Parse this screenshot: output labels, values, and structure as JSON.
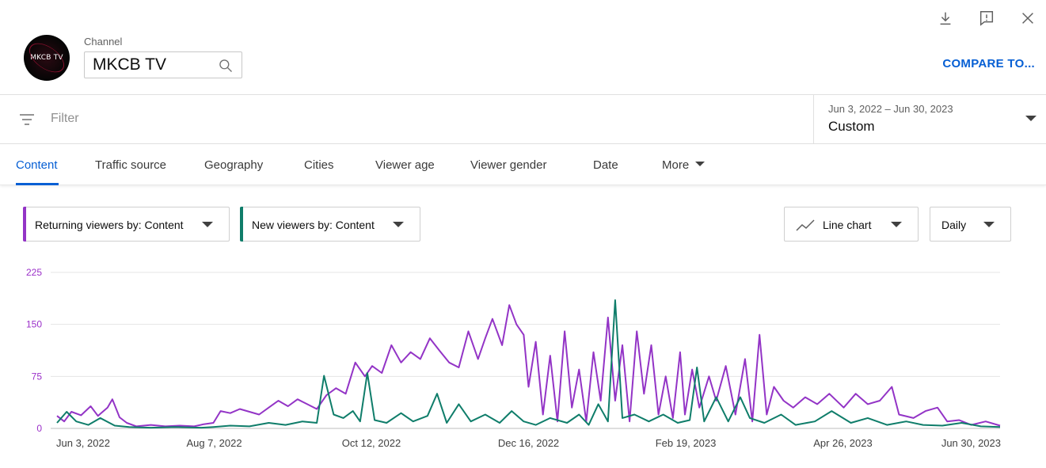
{
  "header": {
    "channel_label": "Channel",
    "channel_value": "MKCB TV",
    "avatar_text": "MKCB TV",
    "compare_label": "COMPARE TO...",
    "icons": [
      "download-icon",
      "feedback-icon",
      "close-icon"
    ]
  },
  "filter": {
    "placeholder": "Filter",
    "date_range": "Jun 3, 2022 – Jun 30, 2023",
    "date_mode": "Custom"
  },
  "tabs": [
    {
      "label": "Content",
      "active": true
    },
    {
      "label": "Traffic source"
    },
    {
      "label": "Geography"
    },
    {
      "label": "Cities"
    },
    {
      "label": "Viewer age"
    },
    {
      "label": "Viewer gender"
    },
    {
      "label": "Date"
    },
    {
      "label": "More"
    }
  ],
  "selectors": {
    "metric1": "Returning viewers by: Content",
    "metric2": "New viewers by: Content",
    "chart_type": "Line chart",
    "granularity": "Daily"
  },
  "colors": {
    "accent": "#065fd4",
    "returning": "#9334c6",
    "new": "#0f7d6a",
    "grid": "#e5e5e5"
  },
  "chart_data": {
    "type": "line",
    "x_start": "2022-06-03",
    "x_end": "2023-06-30",
    "x_ticks": [
      "Jun 3, 2022",
      "Aug 7, 2022",
      "Oct 12, 2022",
      "Dec 16, 2022",
      "Feb 19, 2023",
      "Apr 26, 2023",
      "Jun 30, 2023"
    ],
    "y_ticks": [
      "0",
      "75",
      "150",
      "225"
    ],
    "ylim": [
      0,
      225
    ],
    "series": [
      {
        "name": "Returning viewers by: Content",
        "color": "#9334c6",
        "points": [
          [
            "2022-06-03",
            18
          ],
          [
            "2022-06-06",
            10
          ],
          [
            "2022-06-09",
            24
          ],
          [
            "2022-06-13",
            19
          ],
          [
            "2022-06-17",
            32
          ],
          [
            "2022-06-20",
            18
          ],
          [
            "2022-06-24",
            30
          ],
          [
            "2022-06-26",
            42
          ],
          [
            "2022-06-29",
            16
          ],
          [
            "2022-07-02",
            8
          ],
          [
            "2022-07-06",
            3
          ],
          [
            "2022-07-12",
            5
          ],
          [
            "2022-07-18",
            3
          ],
          [
            "2022-07-24",
            4
          ],
          [
            "2022-07-30",
            3
          ],
          [
            "2022-08-03",
            6
          ],
          [
            "2022-08-07",
            8
          ],
          [
            "2022-08-10",
            25
          ],
          [
            "2022-08-14",
            22
          ],
          [
            "2022-08-18",
            28
          ],
          [
            "2022-08-22",
            24
          ],
          [
            "2022-08-26",
            20
          ],
          [
            "2022-08-30",
            30
          ],
          [
            "2022-09-03",
            40
          ],
          [
            "2022-09-07",
            32
          ],
          [
            "2022-09-11",
            42
          ],
          [
            "2022-09-15",
            35
          ],
          [
            "2022-09-19",
            28
          ],
          [
            "2022-09-23",
            48
          ],
          [
            "2022-09-27",
            58
          ],
          [
            "2022-10-01",
            50
          ],
          [
            "2022-10-05",
            95
          ],
          [
            "2022-10-09",
            75
          ],
          [
            "2022-10-12",
            90
          ],
          [
            "2022-10-16",
            80
          ],
          [
            "2022-10-20",
            120
          ],
          [
            "2022-10-24",
            95
          ],
          [
            "2022-10-28",
            110
          ],
          [
            "2022-11-01",
            100
          ],
          [
            "2022-11-05",
            130
          ],
          [
            "2022-11-09",
            112
          ],
          [
            "2022-11-13",
            95
          ],
          [
            "2022-11-17",
            88
          ],
          [
            "2022-11-21",
            140
          ],
          [
            "2022-11-25",
            100
          ],
          [
            "2022-11-28",
            130
          ],
          [
            "2022-12-01",
            158
          ],
          [
            "2022-12-05",
            120
          ],
          [
            "2022-12-08",
            178
          ],
          [
            "2022-12-11",
            150
          ],
          [
            "2022-12-14",
            135
          ],
          [
            "2022-12-16",
            60
          ],
          [
            "2022-12-19",
            125
          ],
          [
            "2022-12-22",
            20
          ],
          [
            "2022-12-25",
            105
          ],
          [
            "2022-12-28",
            10
          ],
          [
            "2022-12-31",
            140
          ],
          [
            "2023-01-03",
            30
          ],
          [
            "2023-01-06",
            85
          ],
          [
            "2023-01-09",
            10
          ],
          [
            "2023-01-12",
            110
          ],
          [
            "2023-01-15",
            40
          ],
          [
            "2023-01-18",
            160
          ],
          [
            "2023-01-21",
            40
          ],
          [
            "2023-01-24",
            120
          ],
          [
            "2023-01-27",
            10
          ],
          [
            "2023-01-30",
            140
          ],
          [
            "2023-02-02",
            50
          ],
          [
            "2023-02-05",
            120
          ],
          [
            "2023-02-08",
            20
          ],
          [
            "2023-02-11",
            75
          ],
          [
            "2023-02-14",
            15
          ],
          [
            "2023-02-17",
            110
          ],
          [
            "2023-02-19",
            20
          ],
          [
            "2023-02-22",
            85
          ],
          [
            "2023-02-25",
            30
          ],
          [
            "2023-03-01",
            75
          ],
          [
            "2023-03-04",
            40
          ],
          [
            "2023-03-08",
            90
          ],
          [
            "2023-03-12",
            20
          ],
          [
            "2023-03-16",
            100
          ],
          [
            "2023-03-19",
            10
          ],
          [
            "2023-03-22",
            135
          ],
          [
            "2023-03-25",
            20
          ],
          [
            "2023-03-28",
            60
          ],
          [
            "2023-04-01",
            40
          ],
          [
            "2023-04-05",
            30
          ],
          [
            "2023-04-10",
            45
          ],
          [
            "2023-04-15",
            35
          ],
          [
            "2023-04-20",
            50
          ],
          [
            "2023-04-26",
            30
          ],
          [
            "2023-05-01",
            50
          ],
          [
            "2023-05-06",
            35
          ],
          [
            "2023-05-11",
            40
          ],
          [
            "2023-05-16",
            60
          ],
          [
            "2023-05-19",
            20
          ],
          [
            "2023-05-25",
            15
          ],
          [
            "2023-05-30",
            25
          ],
          [
            "2023-06-04",
            30
          ],
          [
            "2023-06-08",
            10
          ],
          [
            "2023-06-13",
            12
          ],
          [
            "2023-06-18",
            5
          ],
          [
            "2023-06-24",
            10
          ],
          [
            "2023-06-30",
            4
          ]
        ]
      },
      {
        "name": "New viewers by: Content",
        "color": "#0f7d6a",
        "points": [
          [
            "2022-06-03",
            8
          ],
          [
            "2022-06-07",
            24
          ],
          [
            "2022-06-11",
            10
          ],
          [
            "2022-06-16",
            5
          ],
          [
            "2022-06-21",
            15
          ],
          [
            "2022-06-27",
            4
          ],
          [
            "2022-07-03",
            2
          ],
          [
            "2022-07-12",
            1
          ],
          [
            "2022-07-22",
            2
          ],
          [
            "2022-08-02",
            1
          ],
          [
            "2022-08-07",
            2
          ],
          [
            "2022-08-14",
            4
          ],
          [
            "2022-08-22",
            3
          ],
          [
            "2022-08-30",
            8
          ],
          [
            "2022-09-06",
            5
          ],
          [
            "2022-09-13",
            10
          ],
          [
            "2022-09-19",
            8
          ],
          [
            "2022-09-22",
            76
          ],
          [
            "2022-09-26",
            20
          ],
          [
            "2022-09-30",
            15
          ],
          [
            "2022-10-04",
            25
          ],
          [
            "2022-10-07",
            10
          ],
          [
            "2022-10-10",
            80
          ],
          [
            "2022-10-13",
            12
          ],
          [
            "2022-10-18",
            8
          ],
          [
            "2022-10-24",
            22
          ],
          [
            "2022-10-29",
            10
          ],
          [
            "2022-11-04",
            18
          ],
          [
            "2022-11-08",
            50
          ],
          [
            "2022-11-12",
            8
          ],
          [
            "2022-11-17",
            35
          ],
          [
            "2022-11-22",
            10
          ],
          [
            "2022-11-28",
            20
          ],
          [
            "2022-12-04",
            8
          ],
          [
            "2022-12-09",
            25
          ],
          [
            "2022-12-14",
            10
          ],
          [
            "2022-12-19",
            5
          ],
          [
            "2022-12-25",
            15
          ],
          [
            "2023-01-01",
            8
          ],
          [
            "2023-01-06",
            20
          ],
          [
            "2023-01-10",
            5
          ],
          [
            "2023-01-14",
            35
          ],
          [
            "2023-01-18",
            10
          ],
          [
            "2023-01-21",
            185
          ],
          [
            "2023-01-24",
            15
          ],
          [
            "2023-01-29",
            20
          ],
          [
            "2023-02-04",
            10
          ],
          [
            "2023-02-10",
            20
          ],
          [
            "2023-02-16",
            8
          ],
          [
            "2023-02-21",
            12
          ],
          [
            "2023-02-24",
            88
          ],
          [
            "2023-02-27",
            10
          ],
          [
            "2023-03-04",
            45
          ],
          [
            "2023-03-09",
            10
          ],
          [
            "2023-03-14",
            45
          ],
          [
            "2023-03-18",
            15
          ],
          [
            "2023-03-24",
            8
          ],
          [
            "2023-03-31",
            20
          ],
          [
            "2023-04-06",
            5
          ],
          [
            "2023-04-14",
            10
          ],
          [
            "2023-04-21",
            25
          ],
          [
            "2023-04-29",
            8
          ],
          [
            "2023-05-06",
            15
          ],
          [
            "2023-05-14",
            5
          ],
          [
            "2023-05-22",
            10
          ],
          [
            "2023-05-29",
            5
          ],
          [
            "2023-06-06",
            4
          ],
          [
            "2023-06-14",
            8
          ],
          [
            "2023-06-22",
            3
          ],
          [
            "2023-06-30",
            2
          ]
        ]
      }
    ]
  }
}
